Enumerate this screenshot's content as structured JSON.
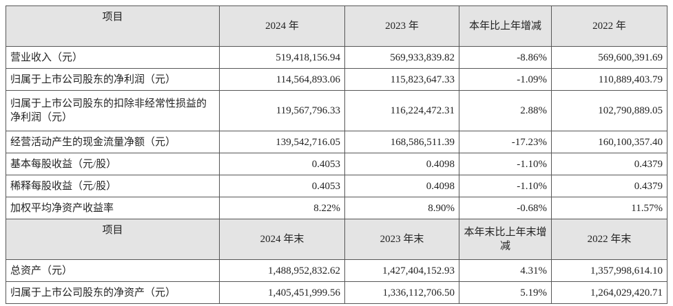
{
  "table": {
    "header": [
      "项目",
      "2024 年",
      "2023 年",
      "本年比上年增减",
      "2022 年"
    ],
    "rows": [
      [
        "营业收入（元）",
        "519,418,156.94",
        "569,933,839.82",
        "-8.86%",
        "569,600,391.69"
      ],
      [
        "归属于上市公司股东的净利润（元）",
        "114,564,893.06",
        "115,823,647.33",
        "-1.09%",
        "110,889,403.79"
      ],
      [
        "归属于上市公司股东的扣除非经常性损益的净利润（元）",
        "119,567,796.33",
        "116,224,472.31",
        "2.88%",
        "102,790,889.05"
      ],
      [
        "经营活动产生的现金流量净额（元）",
        "139,542,716.05",
        "168,586,511.39",
        "-17.23%",
        "160,100,357.40"
      ],
      [
        "基本每股收益（元/股）",
        "0.4053",
        "0.4098",
        "-1.10%",
        "0.4379"
      ],
      [
        "稀释每股收益（元/股）",
        "0.4053",
        "0.4098",
        "-1.10%",
        "0.4379"
      ],
      [
        "加权平均净资产收益率",
        "8.22%",
        "8.90%",
        "-0.68%",
        "11.57%"
      ]
    ],
    "header_2": [
      "项目",
      "2024 年末",
      "2023 年末",
      "本年末比上年末增减",
      "2022 年末"
    ],
    "rows_2": [
      [
        "总资产（元）",
        "1,488,952,832.62",
        "1,427,404,152.93",
        "4.31%",
        "1,357,998,614.10"
      ],
      [
        "归属于上市公司股东的净资产（元）",
        "1,405,451,999.56",
        "1,336,112,706.50",
        "5.19%",
        "1,264,029,420.71"
      ]
    ]
  }
}
